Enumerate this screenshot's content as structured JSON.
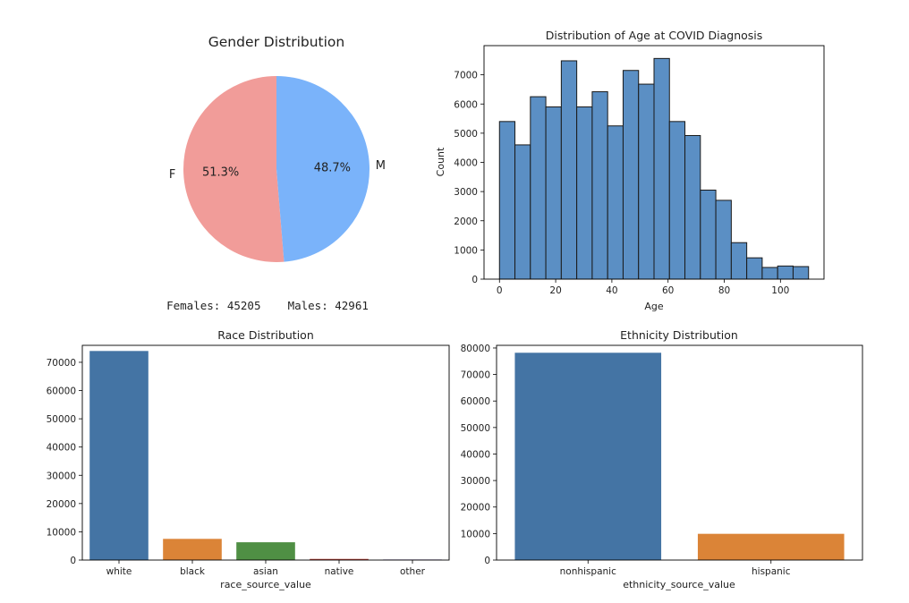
{
  "chart_data": [
    {
      "type": "pie",
      "title": "Gender Distribution",
      "slices": [
        {
          "label": "F",
          "value": 51.3,
          "pct_label": "51.3%",
          "color": "#f19c99"
        },
        {
          "label": "M",
          "value": 48.7,
          "pct_label": "48.7%",
          "color": "#7ab3fa"
        }
      ],
      "counts_text": "Females: 45205    Males: 42961"
    },
    {
      "type": "bar",
      "subtype": "histogram",
      "title": "Distribution of Age at COVID Diagnosis",
      "xlabel": "Age",
      "ylabel": "Count",
      "bin_width": 5.5,
      "x_start": 0,
      "values": [
        5400,
        4600,
        6250,
        5900,
        7480,
        5900,
        6420,
        5250,
        7150,
        6680,
        7560,
        5400,
        4920,
        3050,
        2700,
        1250,
        730,
        400,
        450,
        430
      ],
      "xlim": [
        -5.5,
        115.5
      ],
      "ylim": [
        0,
        8000
      ],
      "xticks": [
        0,
        20,
        40,
        60,
        80,
        100
      ],
      "yticks": [
        0,
        1000,
        2000,
        3000,
        4000,
        5000,
        6000,
        7000
      ],
      "color": "#5b8fc4",
      "edgecolor": "#1a1a1a"
    },
    {
      "type": "bar",
      "title": "Race Distribution",
      "xlabel": "race_source_value",
      "ylabel": "",
      "categories": [
        "white",
        "black",
        "asian",
        "native",
        "other"
      ],
      "values": [
        74000,
        7500,
        6300,
        400,
        200
      ],
      "colors": [
        "#4474a4",
        "#db8437",
        "#4f8f44",
        "#b23c32",
        "#7e6aa8"
      ],
      "ylim": [
        0,
        76000
      ],
      "yticks": [
        0,
        10000,
        20000,
        30000,
        40000,
        50000,
        60000,
        70000
      ]
    },
    {
      "type": "bar",
      "title": "Ethnicity Distribution",
      "xlabel": "ethnicity_source_value",
      "ylabel": "",
      "categories": [
        "nonhispanic",
        "hispanic"
      ],
      "values": [
        78200,
        9900
      ],
      "colors": [
        "#4474a4",
        "#db8437"
      ],
      "ylim": [
        0,
        81000
      ],
      "yticks": [
        0,
        10000,
        20000,
        30000,
        40000,
        50000,
        60000,
        70000,
        80000
      ]
    }
  ]
}
